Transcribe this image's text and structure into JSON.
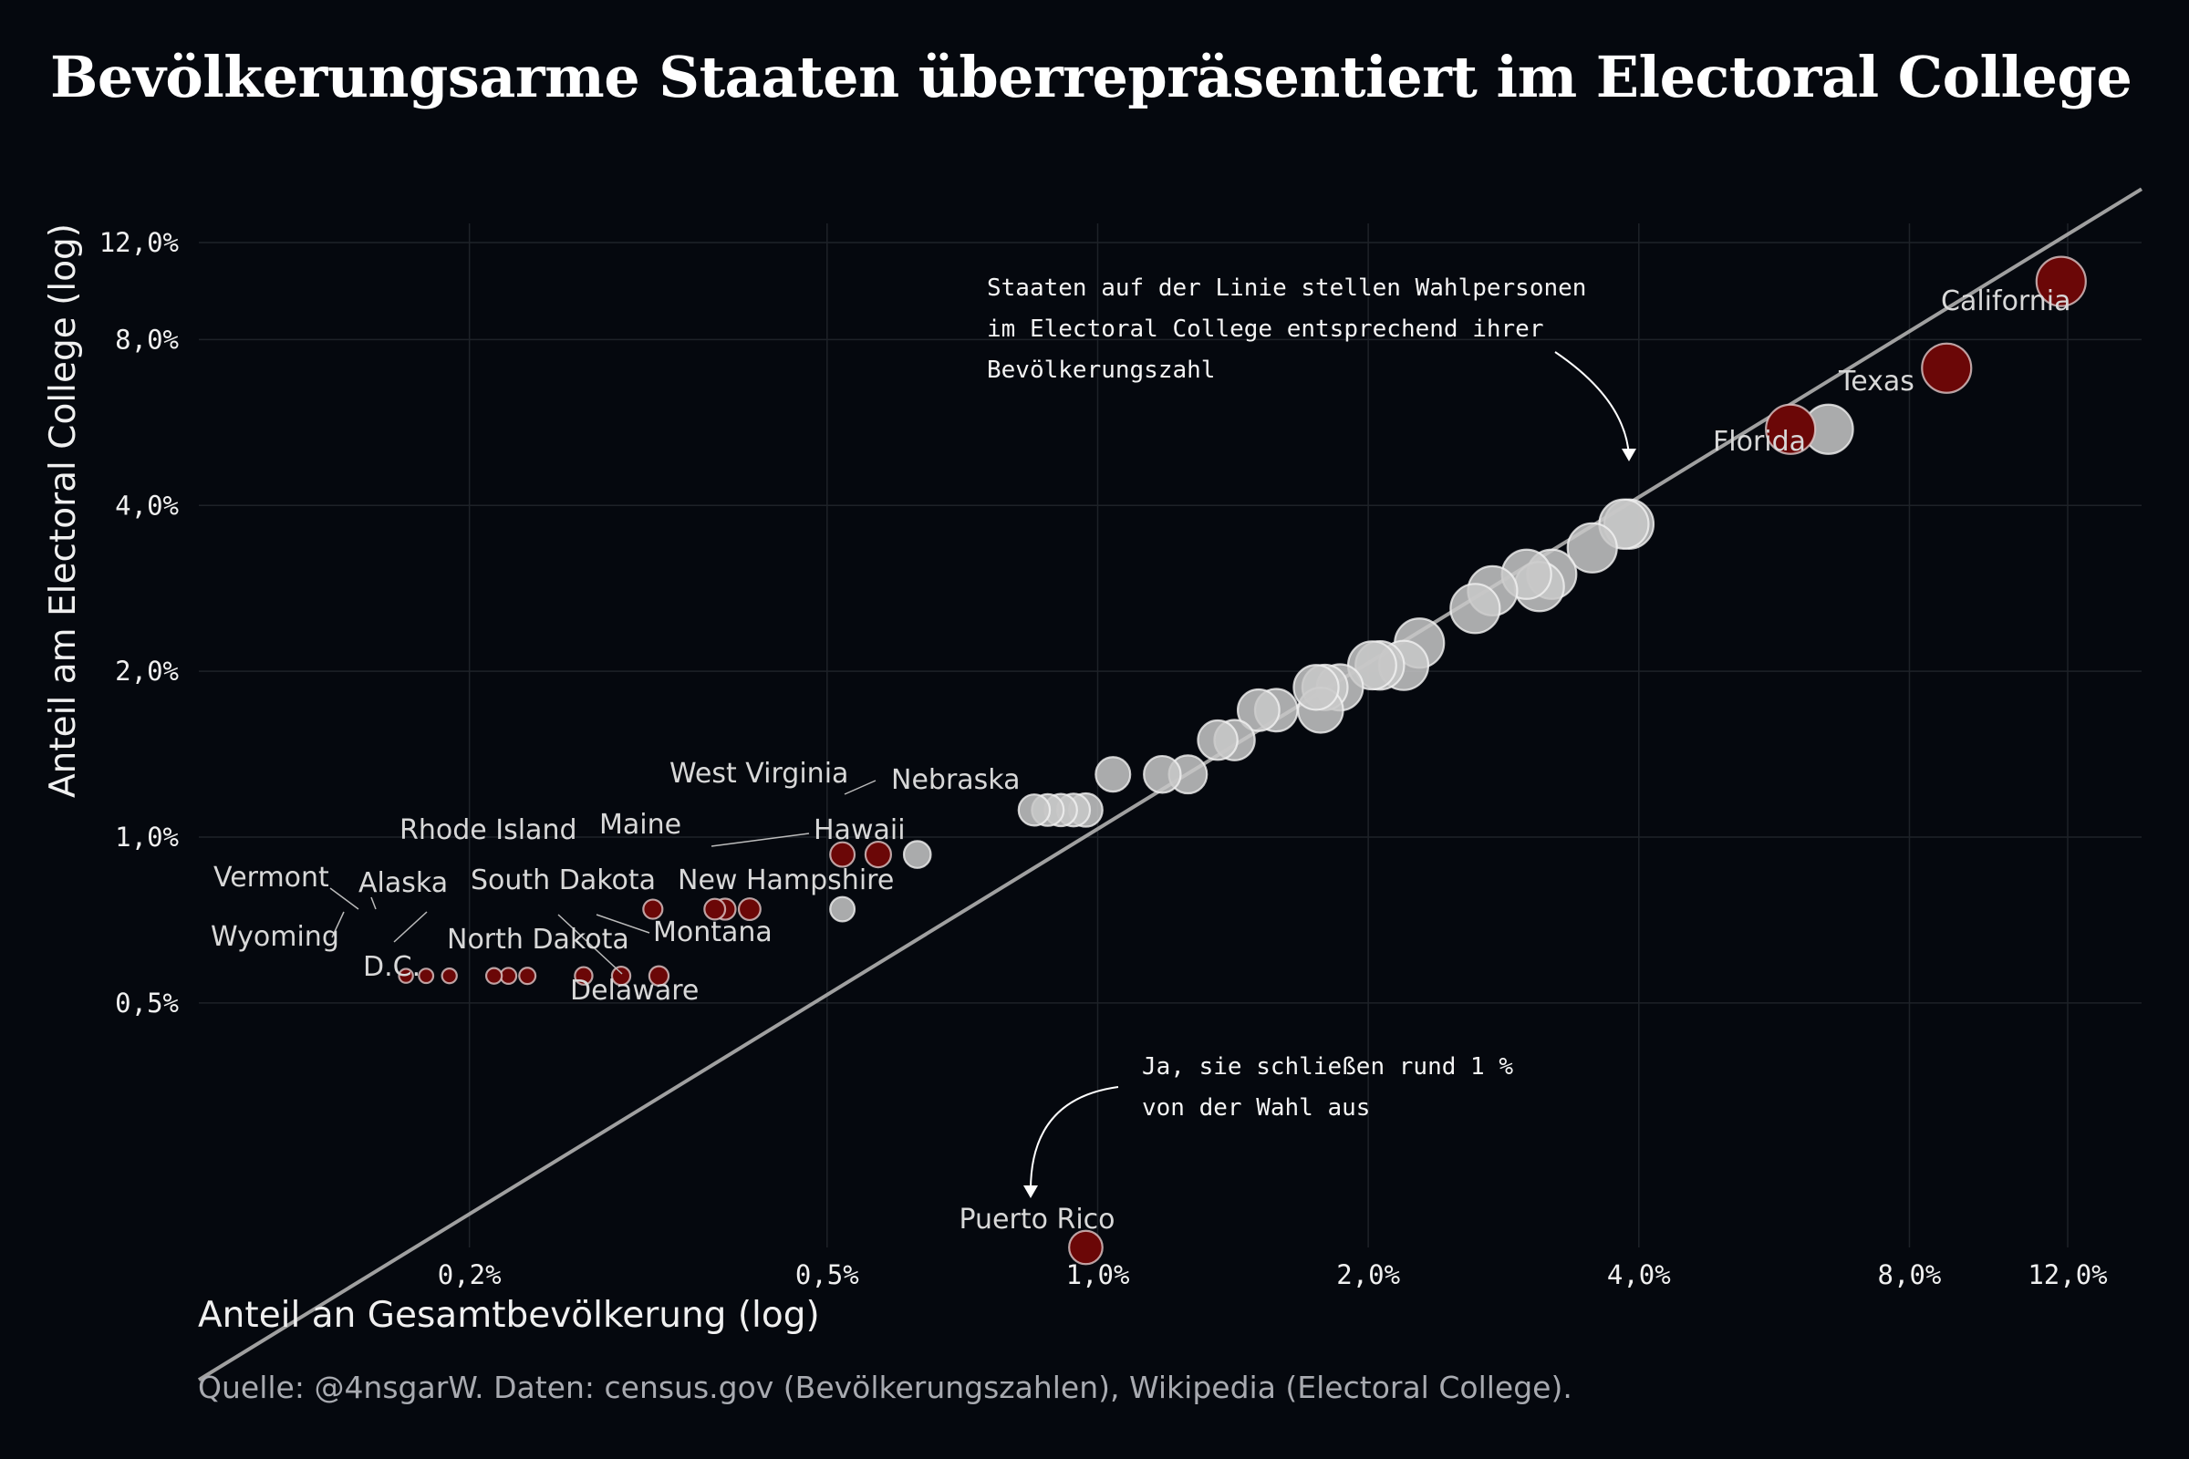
{
  "header": {
    "title": "Bevölkerungsarme Staaten überrepräsentiert im Electoral College"
  },
  "footer": {
    "source": "Quelle: @4nsgarW. Daten: census.gov (Bevölkerungszahlen), Wikipedia (Electoral College)."
  },
  "colors": {
    "background": "#05080e",
    "overrepresented": "#6b0707",
    "normal_point": "#c8c8c8",
    "equality_line": "#a0a0a0",
    "grid": "#1e2228"
  },
  "chart_data": {
    "type": "scatter",
    "title": "Bevölkerungsarme Staaten überrepräsentiert im Electoral College",
    "xlabel": "Anteil an Gesamtbevölkerung (log)",
    "ylabel": "Anteil am Electoral College (log)",
    "x_scale": "log",
    "y_scale": "log",
    "xlim": [
      0.1,
      14.5
    ],
    "ylim": [
      0.18,
      13
    ],
    "x_ticks": [
      0.2,
      0.5,
      1.0,
      2.0,
      4.0,
      8.0,
      12.0
    ],
    "x_tick_labels": [
      "0,2%",
      "0,5%",
      "1,0%",
      "2,0%",
      "4,0%",
      "8,0%",
      "12,0%"
    ],
    "y_ticks": [
      0.5,
      1.0,
      2.0,
      4.0,
      8.0,
      12.0
    ],
    "y_tick_labels": [
      "0,5%",
      "1,0%",
      "2,0%",
      "4,0%",
      "8,0%",
      "12,0%"
    ],
    "grid": true,
    "reference_line": "y = x",
    "size_encoding": "population share",
    "annotations": [
      {
        "text_lines": [
          "Staaten auf der Linie stellen Wahlpersonen",
          "im Electoral College entsprechend ihrer",
          "Bevölkerungszahl"
        ]
      },
      {
        "text_lines": [
          "Ja, sie schließen rund 1 %",
          "von der Wahl aus"
        ]
      }
    ],
    "series": [
      {
        "points": [
          {
            "label": "California",
            "x": 11.8,
            "y": 10.2,
            "over": true
          },
          {
            "label": "Texas",
            "x": 8.8,
            "y": 7.1,
            "over": true
          },
          {
            "label": "",
            "x": 5.9,
            "y": 5.5,
            "over": true
          },
          {
            "label": "Florida",
            "x": 6.5,
            "y": 5.5,
            "over": false
          },
          {
            "label": "",
            "x": 3.9,
            "y": 3.7,
            "over": false
          },
          {
            "label": "",
            "x": 3.85,
            "y": 3.7,
            "over": false
          },
          {
            "label": "",
            "x": 3.55,
            "y": 3.35,
            "over": false
          },
          {
            "label": "",
            "x": 3.2,
            "y": 3.0,
            "over": false
          },
          {
            "label": "",
            "x": 3.1,
            "y": 2.85,
            "over": false
          },
          {
            "label": "",
            "x": 3.0,
            "y": 3.0,
            "over": false
          },
          {
            "label": "",
            "x": 2.75,
            "y": 2.8,
            "over": false
          },
          {
            "label": "",
            "x": 2.63,
            "y": 2.6,
            "over": false
          },
          {
            "label": "",
            "x": 2.28,
            "y": 2.25,
            "over": false
          },
          {
            "label": "",
            "x": 2.19,
            "y": 2.05,
            "over": false
          },
          {
            "label": "",
            "x": 2.06,
            "y": 2.05,
            "over": false
          },
          {
            "label": "",
            "x": 2.02,
            "y": 2.05,
            "over": false
          },
          {
            "label": "",
            "x": 1.86,
            "y": 1.87,
            "over": false
          },
          {
            "label": "",
            "x": 1.79,
            "y": 1.87,
            "over": false
          },
          {
            "label": "",
            "x": 1.75,
            "y": 1.87,
            "over": false
          },
          {
            "label": "",
            "x": 1.77,
            "y": 1.7,
            "over": false
          },
          {
            "label": "",
            "x": 1.58,
            "y": 1.7,
            "over": false
          },
          {
            "label": "",
            "x": 1.51,
            "y": 1.7,
            "over": false
          },
          {
            "label": "",
            "x": 1.42,
            "y": 1.5,
            "over": false
          },
          {
            "label": "",
            "x": 1.36,
            "y": 1.5,
            "over": false
          },
          {
            "label": "",
            "x": 1.26,
            "y": 1.3,
            "over": false
          },
          {
            "label": "",
            "x": 1.18,
            "y": 1.3,
            "over": false
          },
          {
            "label": "",
            "x": 1.04,
            "y": 1.3,
            "over": false
          },
          {
            "label": "",
            "x": 0.97,
            "y": 1.12,
            "over": false
          },
          {
            "label": "",
            "x": 0.94,
            "y": 1.12,
            "over": false
          },
          {
            "label": "",
            "x": 0.91,
            "y": 1.12,
            "over": false
          },
          {
            "label": "",
            "x": 0.88,
            "y": 1.12,
            "over": false
          },
          {
            "label": "",
            "x": 0.85,
            "y": 1.12,
            "over": false
          },
          {
            "label": "Nebraska",
            "x": 0.63,
            "y": 0.93,
            "over": false
          },
          {
            "label": "West Virginia",
            "x": 0.57,
            "y": 0.93,
            "over": true
          },
          {
            "label": "",
            "x": 0.52,
            "y": 0.93,
            "over": true
          },
          {
            "label": "Hawaii",
            "x": 0.52,
            "y": 0.74,
            "over": false
          },
          {
            "label": "New Hampshire",
            "x": 0.41,
            "y": 0.74,
            "over": true
          },
          {
            "label": "Maine",
            "x": 0.385,
            "y": 0.74,
            "over": true
          },
          {
            "label": "",
            "x": 0.375,
            "y": 0.74,
            "over": true
          },
          {
            "label": "Rhode Island",
            "x": 0.32,
            "y": 0.74,
            "over": true
          },
          {
            "label": "Montana",
            "x": 0.325,
            "y": 0.56,
            "over": true
          },
          {
            "label": "Delaware",
            "x": 0.295,
            "y": 0.56,
            "over": true
          },
          {
            "label": "South Dakota",
            "x": 0.268,
            "y": 0.56,
            "over": true
          },
          {
            "label": "North Dakota",
            "x": 0.232,
            "y": 0.56,
            "over": true
          },
          {
            "label": "",
            "x": 0.221,
            "y": 0.56,
            "over": true
          },
          {
            "label": "D.C.",
            "x": 0.213,
            "y": 0.56,
            "over": true
          },
          {
            "label": "Alaska",
            "x": 0.19,
            "y": 0.56,
            "over": true
          },
          {
            "label": "Vermont",
            "x": 0.179,
            "y": 0.56,
            "over": true
          },
          {
            "label": "Wyoming",
            "x": 0.17,
            "y": 0.56,
            "over": true
          },
          {
            "label": "Puerto Rico",
            "x": 0.97,
            "y": 0.18,
            "over": true
          }
        ]
      }
    ]
  }
}
